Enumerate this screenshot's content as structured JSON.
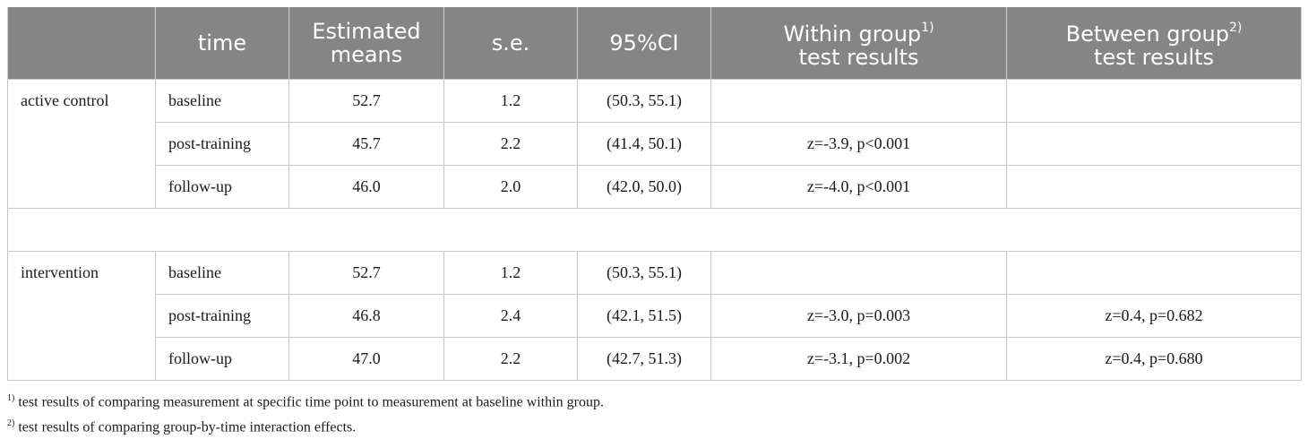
{
  "headers": {
    "group": "",
    "time": "time",
    "means_line1": "Estimated",
    "means_line2": "means",
    "se": "s.e.",
    "ci": "95%CI",
    "within_line1": "Within group",
    "within_sup": "1)",
    "within_line2": "test results",
    "between_line1": "Between group",
    "between_sup": "2)",
    "between_line2": "test results"
  },
  "groups": [
    {
      "name": "active control",
      "rows": [
        {
          "time": "baseline",
          "mean": "52.7",
          "se": "1.2",
          "ci": "(50.3, 55.1)",
          "within": "",
          "between": ""
        },
        {
          "time": "post-training",
          "mean": "45.7",
          "se": "2.2",
          "ci": "(41.4, 50.1)",
          "within": "z=-3.9, p<0.001",
          "between": ""
        },
        {
          "time": "follow-up",
          "mean": "46.0",
          "se": "2.0",
          "ci": "(42.0, 50.0)",
          "within": "z=-4.0, p<0.001",
          "between": ""
        }
      ]
    },
    {
      "name": "intervention",
      "rows": [
        {
          "time": "baseline",
          "mean": "52.7",
          "se": "1.2",
          "ci": "(50.3, 55.1)",
          "within": "",
          "between": ""
        },
        {
          "time": "post-training",
          "mean": "46.8",
          "se": "2.4",
          "ci": "(42.1, 51.5)",
          "within": "z=-3.0, p=0.003",
          "between": "z=0.4, p=0.682"
        },
        {
          "time": "follow-up",
          "mean": "47.0",
          "se": "2.2",
          "ci": "(42.7, 51.3)",
          "within": "z=-3.1, p=0.002",
          "between": "z=0.4, p=0.680"
        }
      ]
    }
  ],
  "footnotes": [
    {
      "mark": "1)",
      "text": " test results of comparing measurement at specific time point to measurement at baseline within group."
    },
    {
      "mark": "2)",
      "text": " test results of comparing group-by-time interaction effects."
    }
  ]
}
